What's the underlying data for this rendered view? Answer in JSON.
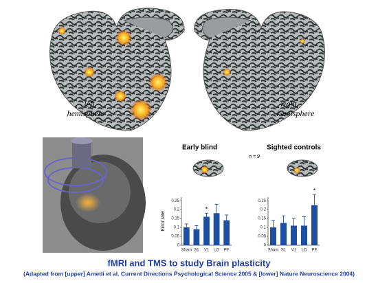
{
  "labels": {
    "left": [
      "left",
      "hemisphere"
    ],
    "right": [
      "right",
      "hemisphere"
    ]
  },
  "note": "n = 9",
  "caption": {
    "title": "fMRI and TMS to study Brain plasticity",
    "source": "(Adapted from [upper] Amedi et al. Current Directions Psychological Science 2005 & [lower] Nature Neuroscience 2004)"
  },
  "chart_data": [
    {
      "type": "bar",
      "title": "Early blind",
      "y_label": "Error rate",
      "categories": [
        "Sham",
        "S1",
        "V1",
        "LO",
        "PF"
      ],
      "values": [
        0.1,
        0.09,
        0.16,
        0.18,
        0.14
      ],
      "errors": [
        0.02,
        0.02,
        0.02,
        0.05,
        0.03
      ],
      "color": "#1f4fa0",
      "ylim": [
        0,
        0.27
      ],
      "yticks": [
        0,
        0.05,
        0.1,
        0.15,
        0.2,
        0.25
      ],
      "annotations": [
        {
          "x": "V1",
          "text": "*"
        }
      ]
    },
    {
      "type": "bar",
      "title": "Sighted controls",
      "categories": [
        "Sham",
        "S1",
        "V1",
        "LO",
        "PF"
      ],
      "values": [
        0.1,
        0.125,
        0.11,
        0.11,
        0.225
      ],
      "errors": [
        0.04,
        0.04,
        0.04,
        0.05,
        0.06
      ],
      "color": "#1f4fa0",
      "ylim": [
        0,
        0.27
      ],
      "yticks": [
        0,
        0.05,
        0.1,
        0.15,
        0.2,
        0.25
      ],
      "annotations": [
        {
          "x": "PF",
          "text": "*"
        }
      ]
    }
  ]
}
